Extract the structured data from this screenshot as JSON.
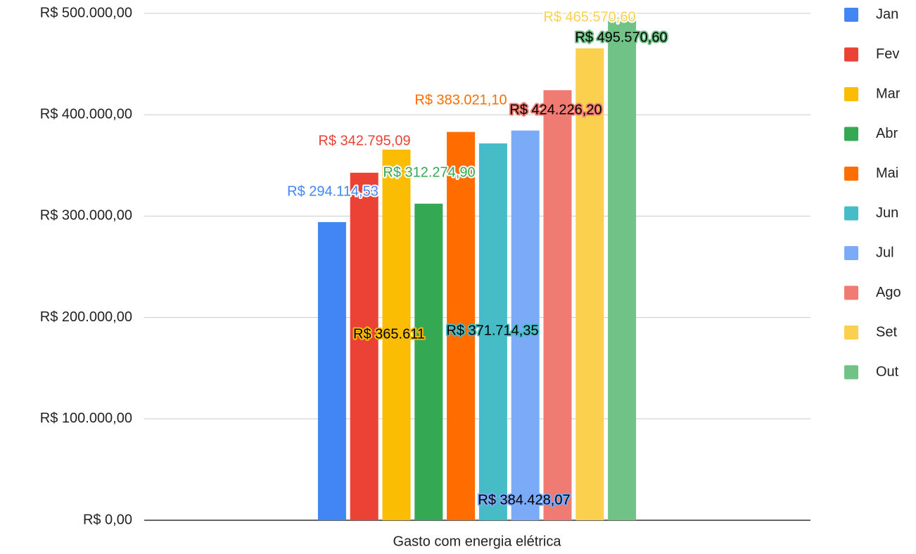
{
  "chart_data": {
    "type": "bar",
    "categories": [
      "Gasto com energia elétrica"
    ],
    "series": [
      {
        "name": "Jan",
        "color": "#4285f4",
        "values": [
          294114.53
        ],
        "value_labels": [
          "R$ 294.114,53"
        ]
      },
      {
        "name": "Fev",
        "color": "#ea4335",
        "values": [
          342795.09
        ],
        "value_labels": [
          "R$ 342.795,09"
        ]
      },
      {
        "name": "Mar",
        "color": "#fbbc04",
        "values": [
          365611
        ],
        "value_labels": [
          "R$ 365.611"
        ]
      },
      {
        "name": "Abr",
        "color": "#34a853",
        "values": [
          312274.9
        ],
        "value_labels": [
          "R$ 312.274,90"
        ]
      },
      {
        "name": "Mai",
        "color": "#ff6d01",
        "values": [
          383021.1
        ],
        "value_labels": [
          "R$ 383.021,10"
        ]
      },
      {
        "name": "Jun",
        "color": "#46bdc6",
        "values": [
          371714.35
        ],
        "value_labels": [
          "R$ 371.714,35"
        ]
      },
      {
        "name": "Jul",
        "color": "#7baaf7",
        "values": [
          384428.07
        ],
        "value_labels": [
          "R$ 384.428,07"
        ]
      },
      {
        "name": "Ago",
        "color": "#f07b72",
        "values": [
          424226.2
        ],
        "value_labels": [
          "R$ 424.226,20"
        ]
      },
      {
        "name": "Set",
        "color": "#fcd04f",
        "values": [
          465570.6
        ],
        "value_labels": [
          "R$ 465.570,60"
        ]
      },
      {
        "name": "Out",
        "color": "#71c287",
        "values": [
          495570.6
        ],
        "value_labels": [
          "R$ 495.570,60"
        ]
      }
    ],
    "ylim": [
      0,
      500000
    ],
    "yticks": [
      {
        "value": 0,
        "label": "R$ 0,00"
      },
      {
        "value": 100000,
        "label": "R$ 100.000,00"
      },
      {
        "value": 200000,
        "label": "R$ 200.000,00"
      },
      {
        "value": 300000,
        "label": "R$ 300.000,00"
      },
      {
        "value": 400000,
        "label": "R$ 400.000,00"
      },
      {
        "value": 500000,
        "label": "R$ 500.000,00"
      }
    ],
    "grid": true,
    "legend": "right"
  }
}
